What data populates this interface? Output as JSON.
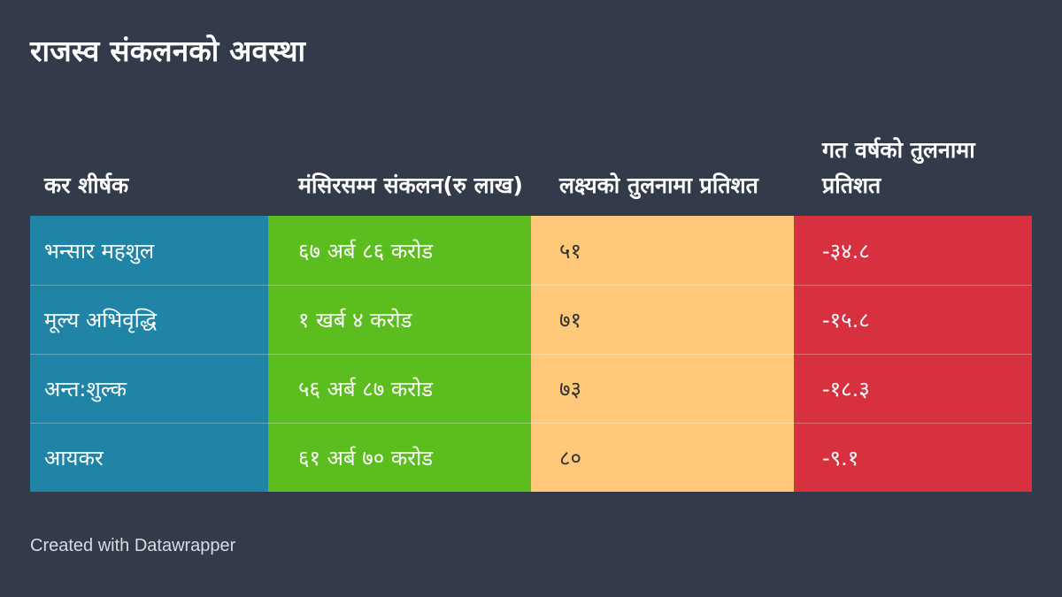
{
  "title": "राजस्व संकलनको अवस्था",
  "footer": "Created with Datawrapper",
  "colors": {
    "background": "#333b4a",
    "column_fills": [
      "#1f84a6",
      "#5cbd1f",
      "#ffc979",
      "#d7313f"
    ],
    "column_text": [
      "#ffffff",
      "#ffffff",
      "#333333",
      "#ffffff"
    ]
  },
  "chart_data": {
    "type": "table",
    "columns": [
      "कर शीर्षक",
      "मंसिरसम्म संकलन(रु लाख)",
      "लक्ष्यको तुलनामा प्रतिशत",
      "गत वर्षको तुलनामा प्रतिशत"
    ],
    "rows": [
      [
        "भन्सार महशुल",
        "६७ अर्ब ८६ करोड",
        "५१",
        "-३४.८"
      ],
      [
        "मूल्य अभिवृद्धि",
        "१ खर्ब ४ करोड",
        "७१",
        "-१५.८"
      ],
      [
        "अन्त:शुल्क",
        "५६ अर्ब ८७ करोड",
        "७३",
        "-१८.३"
      ],
      [
        "आयकर",
        "६१ अर्ब ७० करोड",
        "८०",
        "-९.१"
      ]
    ]
  }
}
